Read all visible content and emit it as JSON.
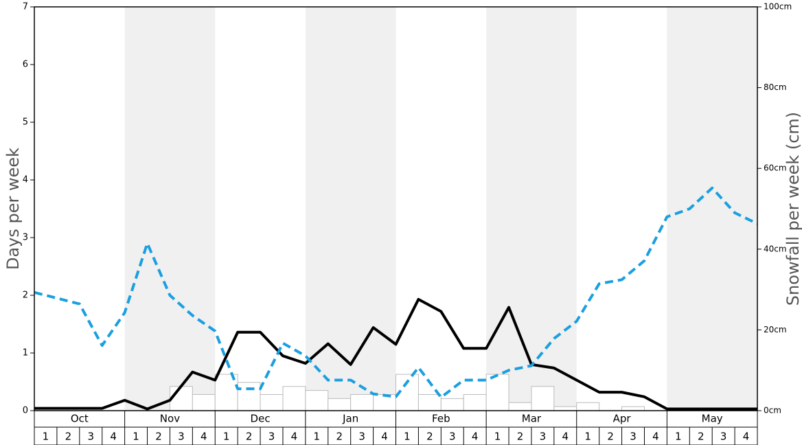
{
  "chart_data": {
    "type": "bar",
    "y_label": "Days per week",
    "y2_label": "Snowfall per week (cm)",
    "months": [
      "Oct",
      "Nov",
      "Dec",
      "Jan",
      "Feb",
      "Mar",
      "Apr",
      "May"
    ],
    "week_labels": [
      "1",
      "2",
      "3",
      "4"
    ],
    "ylim": [
      0,
      7
    ],
    "yticks": [
      0,
      1,
      2,
      3,
      4,
      5,
      6,
      7
    ],
    "y2lim": [
      0,
      100
    ],
    "y2ticks": [
      {
        "value": 0,
        "label": "0cm"
      },
      {
        "value": 20,
        "label": "20cm"
      },
      {
        "value": 40,
        "label": "40cm"
      },
      {
        "value": 60,
        "label": "60cm"
      },
      {
        "value": 80,
        "label": "80cm"
      },
      {
        "value": 100,
        "label": "100cm"
      }
    ],
    "bars": {
      "color": "#ffffff",
      "edge": "#bbbbbb",
      "values": [
        0,
        0,
        0,
        0,
        0,
        0,
        0.42,
        0.28,
        0.63,
        0.49,
        0.28,
        0.42,
        0.35,
        0.21,
        0.28,
        0.28,
        0.63,
        0.28,
        0.21,
        0.28,
        0.63,
        0.14,
        0.42,
        0.07,
        0.14,
        0,
        0.07,
        0,
        0,
        0,
        0,
        0
      ]
    },
    "lines": [
      {
        "color": "#000000",
        "dashed": false,
        "values": [
          0.04,
          0.04,
          0.04,
          0.04,
          0.18,
          0.03,
          0.18,
          0.67,
          0.53,
          1.36,
          1.36,
          0.95,
          0.82,
          1.16,
          0.8,
          1.44,
          1.15,
          1.93,
          1.72,
          1.08,
          1.08,
          1.79,
          0.8,
          0.74,
          0.53,
          0.32,
          0.32,
          0.24,
          0.03,
          0.03,
          0.03,
          0.03,
          0.03
        ]
      },
      {
        "color": "#1a9fe0",
        "dashed": true,
        "values": [
          2.05,
          1.95,
          1.85,
          1.13,
          1.7,
          2.9,
          2.0,
          1.65,
          1.38,
          0.38,
          0.38,
          1.17,
          0.95,
          0.53,
          0.53,
          0.29,
          0.24,
          0.75,
          0.23,
          0.53,
          0.53,
          0.7,
          0.78,
          1.25,
          1.55,
          2.2,
          2.27,
          2.6,
          3.36,
          3.5,
          3.86,
          3.43,
          3.24
        ]
      }
    ],
    "shade_color": "#f0f0f0"
  }
}
